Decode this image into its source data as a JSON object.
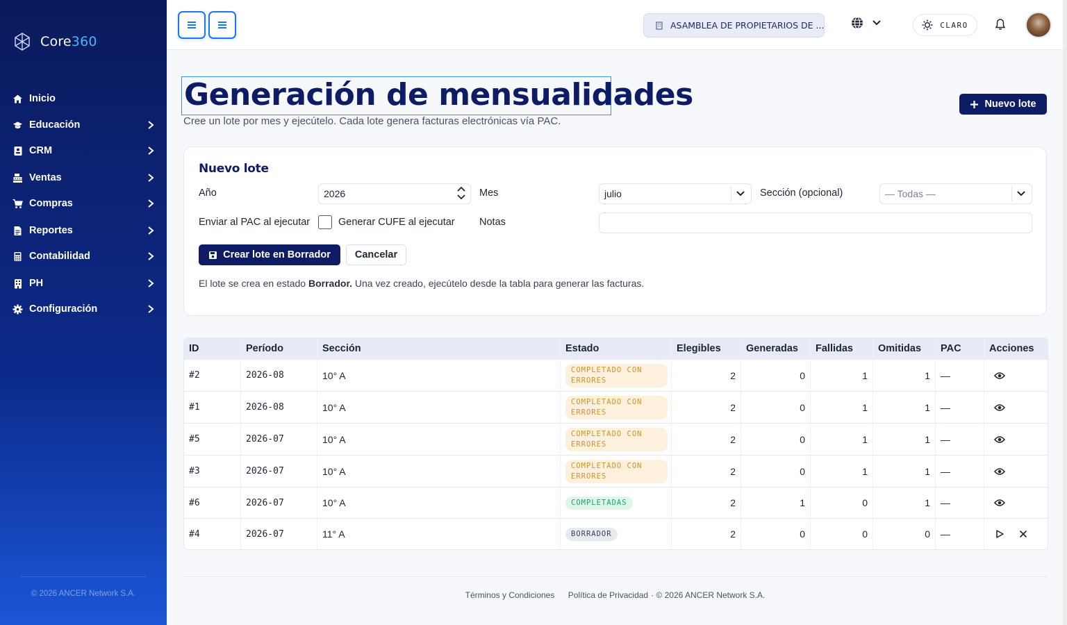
{
  "brand": {
    "name_a": "Core",
    "name_b": "360"
  },
  "sidebar": {
    "items": [
      {
        "label": "Inicio",
        "icon": "home-icon",
        "chevron": false
      },
      {
        "label": "Educación",
        "icon": "graduation-cap-icon",
        "chevron": true
      },
      {
        "label": "CRM",
        "icon": "contact-card-icon",
        "chevron": true
      },
      {
        "label": "Ventas",
        "icon": "cash-register-icon",
        "chevron": true
      },
      {
        "label": "Compras",
        "icon": "cart-icon",
        "chevron": true
      },
      {
        "label": "Reportes",
        "icon": "file-report-icon",
        "chevron": true
      },
      {
        "label": "Contabilidad",
        "icon": "calculator-icon",
        "chevron": true
      },
      {
        "label": "PH",
        "icon": "building-icon",
        "chevron": true
      },
      {
        "label": "Configuración",
        "icon": "gear-icon",
        "chevron": true
      }
    ],
    "footer": "© 2026 ANCER Network S.A."
  },
  "topbar": {
    "org": "ASAMBLEA DE PROPIETARIOS DE ...",
    "theme_label": "CLARO"
  },
  "page": {
    "title": "Generación de mensualidades",
    "subtitle": "Cree un lote por mes y ejecútelo. Cada lote genera facturas electrónicas vía PAC.",
    "new_batch_label": "Nuevo lote"
  },
  "form": {
    "title": "Nuevo lote",
    "year_label": "Año",
    "year_value": "2026",
    "month_label": "Mes",
    "month_value": "julio",
    "section_label": "Sección (opcional)",
    "section_value": "— Todas —",
    "send_pac_label": "Enviar al PAC al ejecutar",
    "cufe_label": "Generar CUFE al ejecutar",
    "notes_label": "Notas",
    "notes_value": "",
    "create_label": "Crear lote en Borrador",
    "cancel_label": "Cancelar",
    "note_prefix": "El lote se crea en estado ",
    "note_bold": "Borrador.",
    "note_suffix": " Una vez creado, ejecútelo desde la tabla para generar las facturas."
  },
  "table": {
    "headers": [
      "ID",
      "Período",
      "Sección",
      "Estado",
      "Elegibles",
      "Generadas",
      "Fallidas",
      "Omitidas",
      "PAC",
      "Acciones"
    ],
    "rows": [
      {
        "id": "#2",
        "period": "2026-08",
        "section": "10° A",
        "status": "COMPLETADO CON ERRORES",
        "status_kind": "err",
        "eligible": "2",
        "generated": "0",
        "failed": "1",
        "omitted": "1",
        "pac": "—",
        "actions": [
          "view"
        ]
      },
      {
        "id": "#1",
        "period": "2026-08",
        "section": "10° A",
        "status": "COMPLETADO CON ERRORES",
        "status_kind": "err",
        "eligible": "2",
        "generated": "0",
        "failed": "1",
        "omitted": "1",
        "pac": "—",
        "actions": [
          "view"
        ]
      },
      {
        "id": "#5",
        "period": "2026-07",
        "section": "10° A",
        "status": "COMPLETADO CON ERRORES",
        "status_kind": "err",
        "eligible": "2",
        "generated": "0",
        "failed": "1",
        "omitted": "1",
        "pac": "—",
        "actions": [
          "view"
        ]
      },
      {
        "id": "#3",
        "period": "2026-07",
        "section": "10° A",
        "status": "COMPLETADO CON ERRORES",
        "status_kind": "err",
        "eligible": "2",
        "generated": "0",
        "failed": "1",
        "omitted": "1",
        "pac": "—",
        "actions": [
          "view"
        ]
      },
      {
        "id": "#6",
        "period": "2026-07",
        "section": "10° A",
        "status": "COMPLETADAS",
        "status_kind": "ok",
        "eligible": "2",
        "generated": "1",
        "failed": "0",
        "omitted": "1",
        "pac": "—",
        "actions": [
          "view"
        ]
      },
      {
        "id": "#4",
        "period": "2026-07",
        "section": "11° A",
        "status": "BORRADOR",
        "status_kind": "draft",
        "eligible": "2",
        "generated": "0",
        "failed": "0",
        "omitted": "0",
        "pac": "—",
        "actions": [
          "run",
          "delete"
        ]
      }
    ]
  },
  "footer": {
    "terms": "Términos y Condiciones",
    "privacy": "Política de Privacidad",
    "copyright": "· © 2026 ANCER Network S.A."
  },
  "colors": {
    "brand_navy": "#0e1c66",
    "accent_blue": "#1877f2",
    "error_badge": "#d4922a",
    "ok_badge": "#1aa46b"
  }
}
